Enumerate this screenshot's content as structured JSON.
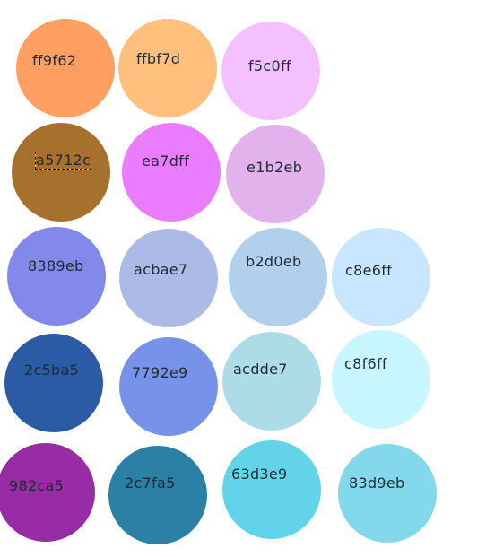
{
  "palette": {
    "selected": "a5712c",
    "swatches": [
      {
        "label": "ff9f62",
        "color": "#ff9f62"
      },
      {
        "label": "ffbf7d",
        "color": "#ffbf7d"
      },
      {
        "label": "f5c0ff",
        "color": "#f5c0ff"
      },
      {
        "label": "a5712c",
        "color": "#a5712c"
      },
      {
        "label": "ea7dff",
        "color": "#ea7dff"
      },
      {
        "label": "e1b2eb",
        "color": "#e1b2eb"
      },
      {
        "label": "8389eb",
        "color": "#8389eb"
      },
      {
        "label": "acbae7",
        "color": "#acbae7"
      },
      {
        "label": "b2d0eb",
        "color": "#b2d0eb"
      },
      {
        "label": "c8e6ff",
        "color": "#c8e6ff"
      },
      {
        "label": "2c5ba5",
        "color": "#2c5ba5"
      },
      {
        "label": "7792e9",
        "color": "#7792e9"
      },
      {
        "label": "acdde7",
        "color": "#acdde7"
      },
      {
        "label": "c8f6ff",
        "color": "#c8f6ff"
      },
      {
        "label": "982ca5",
        "color": "#982ca5"
      },
      {
        "label": "2c7fa5",
        "color": "#2c7fa5"
      },
      {
        "label": "63d3e9",
        "color": "#63d3e9"
      },
      {
        "label": "83d9eb",
        "color": "#83d9eb"
      }
    ]
  }
}
